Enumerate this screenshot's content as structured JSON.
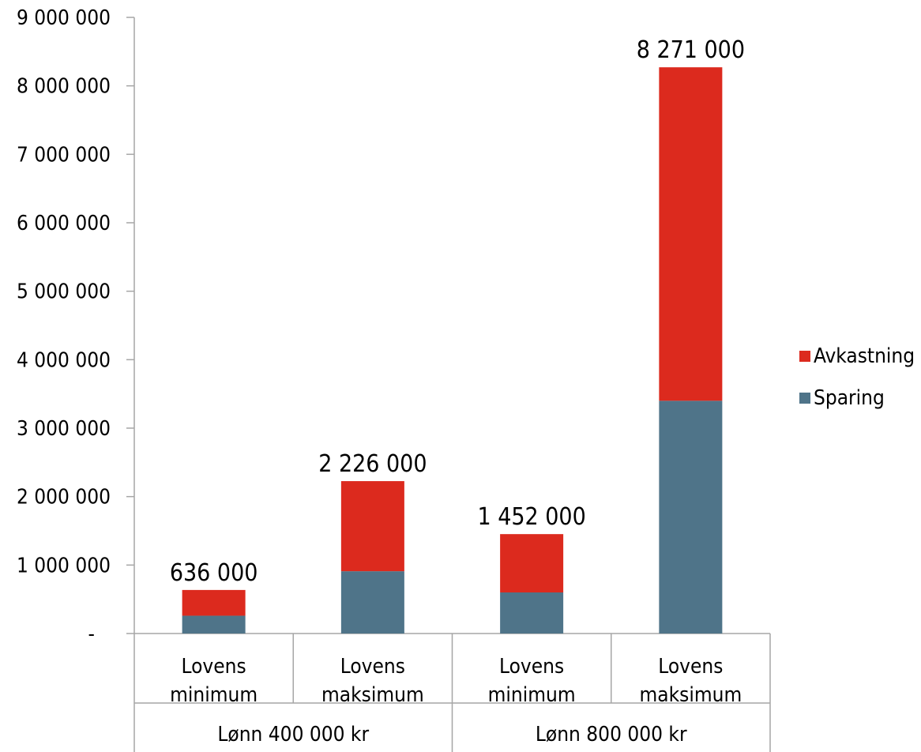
{
  "chart_data": {
    "type": "bar",
    "stacked": true,
    "title": "",
    "xlabel": "",
    "ylabel": "",
    "ylim": [
      0,
      9000000
    ],
    "y_ticks": [
      "-",
      "1 000 000",
      "2 000 000",
      "3 000 000",
      "4 000 000",
      "5 000 000",
      "6 000 000",
      "7 000 000",
      "8 000 000",
      "9 000 000"
    ],
    "groups": [
      {
        "label": "Lønn 400 000 kr",
        "categories": [
          [
            "Lovens",
            "minimum"
          ],
          [
            "Lovens",
            "maksimum"
          ]
        ]
      },
      {
        "label": "Lønn 800 000 kr",
        "categories": [
          [
            "Lovens",
            "minimum"
          ],
          [
            "Lovens",
            "maksimum"
          ]
        ]
      }
    ],
    "series": [
      {
        "name": "Sparing",
        "color": "#4F7489",
        "values": [
          260000,
          910000,
          600000,
          3400000
        ]
      },
      {
        "name": "Avkastning",
        "color": "#DC2A1E",
        "values": [
          376000,
          1316000,
          852000,
          4871000
        ]
      }
    ],
    "totals": [
      636000,
      2226000,
      1452000,
      8271000
    ],
    "total_labels": [
      "636 000",
      "2 226 000",
      "1 452 000",
      "8 271 000"
    ],
    "legend": {
      "placement": "right",
      "order": [
        "Avkastning",
        "Sparing"
      ]
    },
    "grid": false
  }
}
